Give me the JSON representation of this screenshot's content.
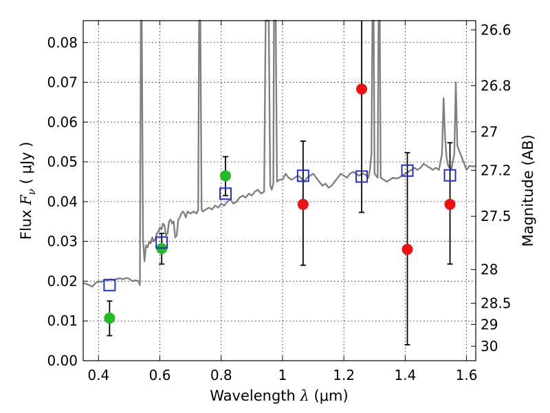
{
  "chart_data": {
    "type": "scatter",
    "xlabel": {
      "prefix": "Wavelength  ",
      "symbol": "λ",
      "unit": " (μm)"
    },
    "ylabel": {
      "prefix": "Flux  ",
      "symbol": "F",
      "sub": "ν",
      "unit": "  ( μJy )"
    },
    "y2label": "Magnitude (AB)",
    "xlim": [
      0.35,
      1.63
    ],
    "ylim": [
      0.0,
      0.0855
    ],
    "xticks": [
      {
        "value": 0.4,
        "label": "0.4"
      },
      {
        "value": 0.6,
        "label": "0.6"
      },
      {
        "value": 0.8,
        "label": "0.8"
      },
      {
        "value": 1.0,
        "label": "1"
      },
      {
        "value": 1.2,
        "label": "1.2"
      },
      {
        "value": 1.4,
        "label": "1.4"
      },
      {
        "value": 1.6,
        "label": "1.6"
      }
    ],
    "yticks": [
      {
        "value": 0.0,
        "label": "0.00"
      },
      {
        "value": 0.01,
        "label": "0.01"
      },
      {
        "value": 0.02,
        "label": "0.02"
      },
      {
        "value": 0.03,
        "label": "0.03"
      },
      {
        "value": 0.04,
        "label": "0.04"
      },
      {
        "value": 0.05,
        "label": "0.05"
      },
      {
        "value": 0.06,
        "label": "0.06"
      },
      {
        "value": 0.07,
        "label": "0.07"
      },
      {
        "value": 0.08,
        "label": "0.08"
      }
    ],
    "y2ticks": [
      {
        "mag": 26.6,
        "label": "26.6"
      },
      {
        "mag": 26.8,
        "label": "26.8"
      },
      {
        "mag": 27.0,
        "label": "27"
      },
      {
        "mag": 27.2,
        "label": "27.2"
      },
      {
        "mag": 27.5,
        "label": "27.5"
      },
      {
        "mag": 28.0,
        "label": "28"
      },
      {
        "mag": 28.5,
        "label": "28.5"
      },
      {
        "mag": 29.0,
        "label": "29"
      },
      {
        "mag": 30.0,
        "label": "30"
      }
    ],
    "grid": true,
    "colors": {
      "model": "#808080",
      "green": "#22bb22",
      "red": "#ee1111",
      "square": "#1f2fd0",
      "errorbar": "#000000",
      "grid": "#000000"
    },
    "model_spectrum": [
      [
        0.35,
        0.0195
      ],
      [
        0.36,
        0.0193
      ],
      [
        0.37,
        0.019
      ],
      [
        0.38,
        0.0186
      ],
      [
        0.39,
        0.0195
      ],
      [
        0.4,
        0.02
      ],
      [
        0.41,
        0.0198
      ],
      [
        0.42,
        0.0203
      ],
      [
        0.43,
        0.0201
      ],
      [
        0.44,
        0.0205
      ],
      [
        0.45,
        0.0202
      ],
      [
        0.46,
        0.0206
      ],
      [
        0.47,
        0.0207
      ],
      [
        0.48,
        0.0205
      ],
      [
        0.49,
        0.0208
      ],
      [
        0.5,
        0.0206
      ],
      [
        0.51,
        0.02
      ],
      [
        0.52,
        0.0202
      ],
      [
        0.53,
        0.02
      ],
      [
        0.535,
        0.019
      ],
      [
        0.538,
        0.09
      ],
      [
        0.541,
        0.09
      ],
      [
        0.545,
        0.031
      ],
      [
        0.55,
        0.025
      ],
      [
        0.555,
        0.029
      ],
      [
        0.56,
        0.0285
      ],
      [
        0.565,
        0.03
      ],
      [
        0.57,
        0.0295
      ],
      [
        0.575,
        0.031
      ],
      [
        0.58,
        0.03
      ],
      [
        0.585,
        0.0305
      ],
      [
        0.59,
        0.032
      ],
      [
        0.595,
        0.0325
      ],
      [
        0.6,
        0.0335
      ],
      [
        0.605,
        0.033
      ],
      [
        0.61,
        0.0345
      ],
      [
        0.615,
        0.034
      ],
      [
        0.62,
        0.0315
      ],
      [
        0.625,
        0.032
      ],
      [
        0.63,
        0.035
      ],
      [
        0.635,
        0.0355
      ],
      [
        0.64,
        0.0345
      ],
      [
        0.645,
        0.035
      ],
      [
        0.65,
        0.031
      ],
      [
        0.655,
        0.0315
      ],
      [
        0.66,
        0.0355
      ],
      [
        0.665,
        0.036
      ],
      [
        0.67,
        0.037
      ],
      [
        0.675,
        0.0375
      ],
      [
        0.68,
        0.037
      ],
      [
        0.685,
        0.036
      ],
      [
        0.69,
        0.0375
      ],
      [
        0.7,
        0.037
      ],
      [
        0.71,
        0.0375
      ],
      [
        0.72,
        0.037
      ],
      [
        0.725,
        0.038
      ],
      [
        0.728,
        0.09
      ],
      [
        0.732,
        0.09
      ],
      [
        0.736,
        0.038
      ],
      [
        0.74,
        0.0375
      ],
      [
        0.75,
        0.038
      ],
      [
        0.76,
        0.0385
      ],
      [
        0.77,
        0.038
      ],
      [
        0.78,
        0.039
      ],
      [
        0.79,
        0.0385
      ],
      [
        0.8,
        0.0395
      ],
      [
        0.81,
        0.039
      ],
      [
        0.82,
        0.04
      ],
      [
        0.83,
        0.0405
      ],
      [
        0.84,
        0.0395
      ],
      [
        0.85,
        0.04
      ],
      [
        0.86,
        0.041
      ],
      [
        0.87,
        0.0415
      ],
      [
        0.88,
        0.041
      ],
      [
        0.89,
        0.042
      ],
      [
        0.9,
        0.0415
      ],
      [
        0.91,
        0.0425
      ],
      [
        0.92,
        0.043
      ],
      [
        0.93,
        0.042
      ],
      [
        0.94,
        0.0425
      ],
      [
        0.945,
        0.09
      ],
      [
        0.955,
        0.09
      ],
      [
        0.96,
        0.044
      ],
      [
        0.965,
        0.043
      ],
      [
        0.97,
        0.0445
      ],
      [
        0.972,
        0.09
      ],
      [
        0.978,
        0.09
      ],
      [
        0.982,
        0.045
      ],
      [
        0.99,
        0.0455
      ],
      [
        1.0,
        0.0455
      ],
      [
        1.01,
        0.047
      ],
      [
        1.02,
        0.046
      ],
      [
        1.03,
        0.0455
      ],
      [
        1.04,
        0.046
      ],
      [
        1.05,
        0.0465
      ],
      [
        1.06,
        0.046
      ],
      [
        1.07,
        0.045
      ],
      [
        1.08,
        0.046
      ],
      [
        1.09,
        0.0465
      ],
      [
        1.1,
        0.047
      ],
      [
        1.11,
        0.046
      ],
      [
        1.12,
        0.045
      ],
      [
        1.13,
        0.044
      ],
      [
        1.14,
        0.0445
      ],
      [
        1.15,
        0.0435
      ],
      [
        1.16,
        0.044
      ],
      [
        1.17,
        0.045
      ],
      [
        1.18,
        0.046
      ],
      [
        1.19,
        0.047
      ],
      [
        1.2,
        0.0465
      ],
      [
        1.21,
        0.046
      ],
      [
        1.22,
        0.047
      ],
      [
        1.23,
        0.0475
      ],
      [
        1.24,
        0.047
      ],
      [
        1.25,
        0.0465
      ],
      [
        1.26,
        0.047
      ],
      [
        1.27,
        0.0468
      ],
      [
        1.28,
        0.046
      ],
      [
        1.285,
        0.048
      ],
      [
        1.29,
        0.052
      ],
      [
        1.293,
        0.09
      ],
      [
        1.297,
        0.09
      ],
      [
        1.3,
        0.047
      ],
      [
        1.31,
        0.046
      ],
      [
        1.313,
        0.09
      ],
      [
        1.317,
        0.09
      ],
      [
        1.32,
        0.046
      ],
      [
        1.33,
        0.0455
      ],
      [
        1.34,
        0.045
      ],
      [
        1.35,
        0.0455
      ],
      [
        1.36,
        0.046
      ],
      [
        1.37,
        0.0458
      ],
      [
        1.38,
        0.046
      ],
      [
        1.39,
        0.0465
      ],
      [
        1.4,
        0.047
      ],
      [
        1.41,
        0.0475
      ],
      [
        1.42,
        0.048
      ],
      [
        1.43,
        0.0485
      ],
      [
        1.44,
        0.048
      ],
      [
        1.45,
        0.0485
      ],
      [
        1.46,
        0.0495
      ],
      [
        1.47,
        0.049
      ],
      [
        1.48,
        0.0485
      ],
      [
        1.49,
        0.048
      ],
      [
        1.5,
        0.0485
      ],
      [
        1.51,
        0.048
      ],
      [
        1.52,
        0.052
      ],
      [
        1.525,
        0.066
      ],
      [
        1.53,
        0.056
      ],
      [
        1.535,
        0.051
      ],
      [
        1.54,
        0.049
      ],
      [
        1.55,
        0.048
      ],
      [
        1.56,
        0.052
      ],
      [
        1.565,
        0.07
      ],
      [
        1.57,
        0.054
      ],
      [
        1.58,
        0.052
      ],
      [
        1.59,
        0.05
      ],
      [
        1.6,
        0.048
      ],
      [
        1.61,
        0.049
      ],
      [
        1.62,
        0.0488
      ],
      [
        1.63,
        0.049
      ]
    ],
    "green_points": [
      {
        "x": 0.436,
        "y": 0.0107,
        "err": [
          0.0063,
          0.015
        ]
      },
      {
        "x": 0.606,
        "y": 0.0282,
        "err": [
          0.0243,
          0.032
        ]
      },
      {
        "x": 0.814,
        "y": 0.0465,
        "err": [
          0.0415,
          0.0513
        ]
      }
    ],
    "red_points": [
      {
        "x": 1.067,
        "y": 0.0393,
        "err": [
          0.024,
          0.0552
        ]
      },
      {
        "x": 1.258,
        "y": 0.0683,
        "err": [
          0.0373,
          0.087
        ]
      },
      {
        "x": 1.407,
        "y": 0.028,
        "err": [
          0.004,
          0.0523
        ]
      },
      {
        "x": 1.546,
        "y": 0.0393,
        "err": [
          0.0243,
          0.0548
        ]
      }
    ],
    "model_squares": [
      {
        "x": 0.436,
        "y": 0.019
      },
      {
        "x": 0.606,
        "y": 0.0297
      },
      {
        "x": 0.814,
        "y": 0.042
      },
      {
        "x": 1.067,
        "y": 0.0465
      },
      {
        "x": 1.258,
        "y": 0.0463
      },
      {
        "x": 1.407,
        "y": 0.0478
      },
      {
        "x": 1.546,
        "y": 0.0466
      }
    ]
  }
}
